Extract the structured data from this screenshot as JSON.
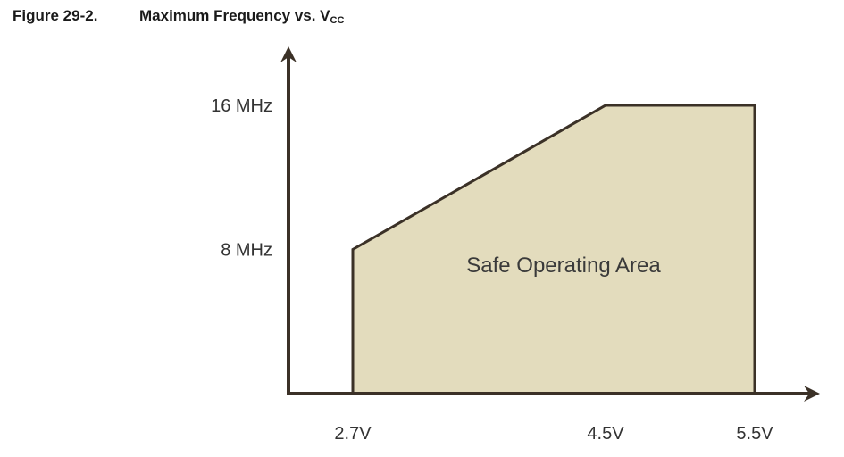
{
  "figure": {
    "number": "Figure 29-2.",
    "title_main": "Maximum Frequency vs. V",
    "title_sub": "CC"
  },
  "colors": {
    "axis": "#3b3127",
    "area_fill": "#e3dcbd",
    "area_stroke": "#3b3127"
  },
  "chart_data": {
    "type": "area",
    "title": "Maximum Frequency vs. VCC",
    "xlabel": "",
    "ylabel": "",
    "x_ticks": [
      {
        "value": 2.7,
        "label": "2.7V"
      },
      {
        "value": 4.5,
        "label": "4.5V"
      },
      {
        "value": 5.5,
        "label": "5.5V"
      }
    ],
    "y_ticks": [
      {
        "value": 8,
        "label": "8 MHz"
      },
      {
        "value": 16,
        "label": "16 MHz"
      }
    ],
    "series": [
      {
        "name": "",
        "points": [
          {
            "x": 2.7,
            "y": 8
          },
          {
            "x": 4.5,
            "y": 16
          },
          {
            "x": 5.5,
            "y": 16
          }
        ]
      }
    ],
    "annotation": "Safe Operating Area"
  }
}
